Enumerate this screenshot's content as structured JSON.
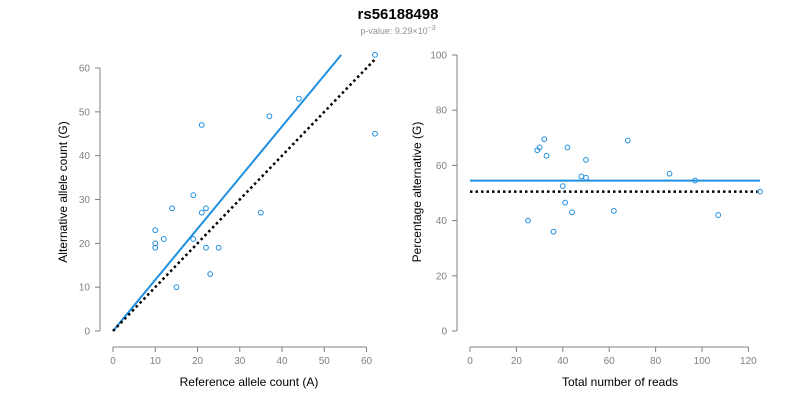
{
  "figure": {
    "title": "rs56188498",
    "subtitle_prefix": "p-value: 9.29×10",
    "subtitle_exponent": "−3"
  },
  "colors": {
    "points": "#1f8fe0",
    "fit_line": "#1f8fe0",
    "reference_line": "#000000",
    "axis": "#808080"
  },
  "chart_data": [
    {
      "type": "scatter",
      "xlabel": "Reference allele count (A)",
      "ylabel": "Alternative allele count (G)",
      "xlim": [
        0,
        62
      ],
      "ylim": [
        0,
        63
      ],
      "xticks": [
        0,
        10,
        20,
        30,
        40,
        50,
        60
      ],
      "yticks": [
        0,
        10,
        20,
        30,
        40,
        50,
        60
      ],
      "grid": false,
      "points": [
        {
          "x": 10,
          "y": 19
        },
        {
          "x": 10,
          "y": 20
        },
        {
          "x": 10,
          "y": 23
        },
        {
          "x": 12,
          "y": 21
        },
        {
          "x": 14,
          "y": 28
        },
        {
          "x": 15,
          "y": 10
        },
        {
          "x": 19,
          "y": 31
        },
        {
          "x": 19,
          "y": 21
        },
        {
          "x": 21,
          "y": 27
        },
        {
          "x": 21,
          "y": 47
        },
        {
          "x": 22,
          "y": 28
        },
        {
          "x": 22,
          "y": 19
        },
        {
          "x": 23,
          "y": 13
        },
        {
          "x": 25,
          "y": 19
        },
        {
          "x": 35,
          "y": 27
        },
        {
          "x": 37,
          "y": 49
        },
        {
          "x": 44,
          "y": 53
        },
        {
          "x": 62,
          "y": 63
        },
        {
          "x": 62,
          "y": 45
        }
      ],
      "lines": [
        {
          "style": "solid",
          "from": [
            0,
            0
          ],
          "to": [
            54,
            63
          ]
        },
        {
          "style": "dotted",
          "from": [
            0,
            0
          ],
          "to": [
            62,
            62
          ]
        }
      ]
    },
    {
      "type": "scatter",
      "xlabel": "Total number of reads",
      "ylabel": "Percentage alternative (G)",
      "xlim": [
        0,
        125
      ],
      "ylim": [
        0,
        100
      ],
      "xticks": [
        0,
        20,
        40,
        60,
        80,
        100,
        120
      ],
      "yticks": [
        0,
        20,
        40,
        60,
        80,
        100
      ],
      "grid": false,
      "points": [
        {
          "x": 25,
          "y": 40
        },
        {
          "x": 29,
          "y": 65.5
        },
        {
          "x": 30,
          "y": 66.5
        },
        {
          "x": 32,
          "y": 69.5
        },
        {
          "x": 33,
          "y": 63.5
        },
        {
          "x": 36,
          "y": 36
        },
        {
          "x": 40,
          "y": 52.5
        },
        {
          "x": 41,
          "y": 46.5
        },
        {
          "x": 42,
          "y": 66.5
        },
        {
          "x": 44,
          "y": 43
        },
        {
          "x": 48,
          "y": 56
        },
        {
          "x": 50,
          "y": 62
        },
        {
          "x": 50,
          "y": 55.5
        },
        {
          "x": 62,
          "y": 43.5
        },
        {
          "x": 68,
          "y": 69
        },
        {
          "x": 86,
          "y": 57
        },
        {
          "x": 97,
          "y": 54.5
        },
        {
          "x": 107,
          "y": 42
        },
        {
          "x": 125,
          "y": 50.5
        }
      ],
      "lines": [
        {
          "style": "solid",
          "from": [
            0,
            54.5
          ],
          "to": [
            125,
            54.5
          ]
        },
        {
          "style": "dotted",
          "from": [
            0,
            50.5
          ],
          "to": [
            125,
            50.5
          ]
        }
      ]
    }
  ]
}
